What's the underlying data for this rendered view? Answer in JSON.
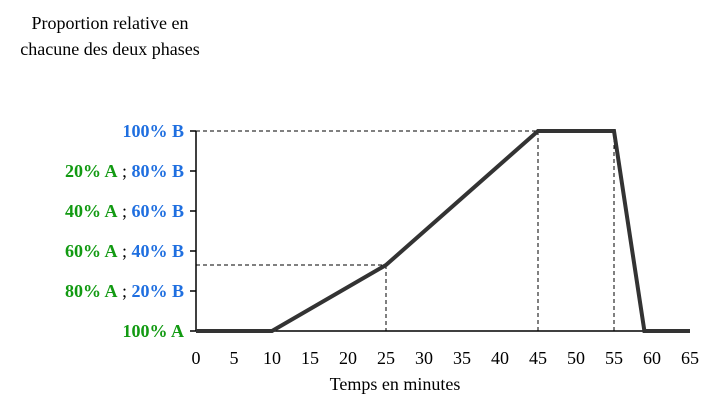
{
  "chart_data": {
    "type": "line",
    "ylabel": "Proportion relative en chacune des deux phases",
    "xlabel": "Temps en minutes",
    "xlim": [
      0,
      65
    ],
    "ylim": [
      0,
      100
    ],
    "x_ticks": [
      0,
      5,
      10,
      15,
      20,
      25,
      30,
      35,
      40,
      45,
      50,
      55,
      60,
      65
    ],
    "y_ticks": [
      {
        "value": 0,
        "label_a": "100% A",
        "separator": "",
        "label_b": ""
      },
      {
        "value": 20,
        "label_a": "80% A",
        "separator": " ; ",
        "label_b": "20% B"
      },
      {
        "value": 40,
        "label_a": "60% A",
        "separator": " ; ",
        "label_b": "40% B"
      },
      {
        "value": 60,
        "label_a": "40% A",
        "separator": " ; ",
        "label_b": "60% B"
      },
      {
        "value": 80,
        "label_a": "20% A",
        "separator": " ; ",
        "label_b": "80% B"
      },
      {
        "value": 100,
        "label_a": "",
        "separator": "",
        "label_b": "100% B"
      }
    ],
    "series": [
      {
        "x": [
          0,
          10,
          25,
          45,
          55,
          59,
          65
        ],
        "y": [
          0,
          0,
          33,
          100,
          100,
          0,
          0
        ]
      }
    ],
    "reference_lines": [
      {
        "x": 25,
        "y": 33
      },
      {
        "x": 45,
        "y": 100
      },
      {
        "x": 55,
        "y": 100
      }
    ],
    "grid": false,
    "colors": {
      "phase_a": "#129a12",
      "phase_b": "#1f6fe0",
      "line": "#333333",
      "axis": "#000000"
    }
  }
}
